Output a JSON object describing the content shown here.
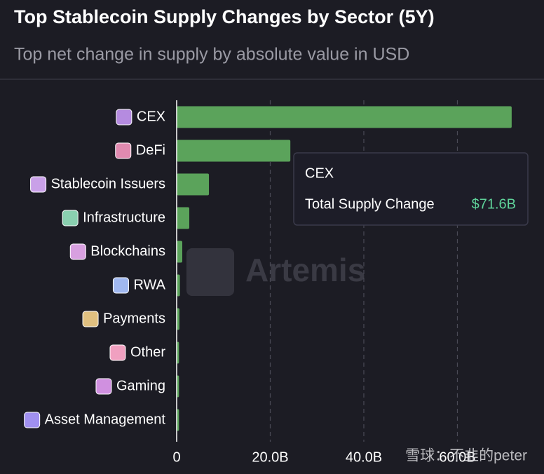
{
  "chart_data": {
    "type": "hbar",
    "title": "Top Stablecoin Supply Changes by Sector (5Y)",
    "subtitle": "Top net change in supply by absolute value in USD",
    "categories": [
      "CEX",
      "DeFi",
      "Stablecoin Issuers",
      "Infrastructure",
      "Blockchains",
      "RWA",
      "Payments",
      "Other",
      "Gaming",
      "Asset Management"
    ],
    "values": [
      71.6,
      24.3,
      6.9,
      2.7,
      1.2,
      0.7,
      0.6,
      0.5,
      0.5,
      0.5
    ],
    "color": "#5ba35b",
    "xlim": [
      0,
      78
    ],
    "xticks": [
      0,
      {
        "value": 20,
        "label": "20.0B"
      },
      {
        "value": 40,
        "label": "40.0B"
      },
      {
        "value": 60,
        "label": "60.0B"
      }
    ],
    "grid": true,
    "tooltip": {
      "title": "CEX",
      "label": "Total Supply Change",
      "value_label": "$71.6B"
    },
    "watermarks": [
      "Artemis",
      "雪球：不韭的peter"
    ]
  }
}
